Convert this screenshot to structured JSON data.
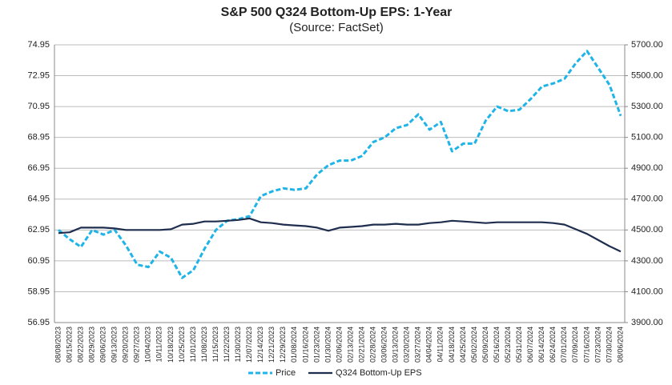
{
  "chart_data": {
    "type": "line",
    "title": "S&P 500 Q324 Bottom-Up EPS: 1-Year",
    "subtitle": "(Source: FactSet)",
    "categories": [
      "08/08/2023",
      "08/15/2023",
      "08/22/2023",
      "08/29/2023",
      "09/06/2023",
      "09/13/2023",
      "09/20/2023",
      "09/27/2023",
      "10/04/2023",
      "10/11/2023",
      "10/18/2023",
      "10/25/2023",
      "11/01/2023",
      "11/08/2023",
      "11/15/2023",
      "11/22/2023",
      "11/30/2023",
      "12/07/2023",
      "12/14/2023",
      "12/21/2023",
      "12/29/2023",
      "01/08/2024",
      "01/16/2024",
      "01/23/2024",
      "01/30/2024",
      "02/06/2024",
      "02/13/2024",
      "02/21/2024",
      "02/28/2024",
      "03/06/2024",
      "03/13/2024",
      "03/20/2024",
      "03/27/2024",
      "04/04/2024",
      "04/11/2024",
      "04/18/2024",
      "04/25/2024",
      "05/02/2024",
      "05/09/2024",
      "05/16/2024",
      "05/23/2024",
      "05/31/2024",
      "06/07/2024",
      "06/14/2024",
      "06/24/2024",
      "07/01/2024",
      "07/09/2024",
      "07/16/2024",
      "07/23/2024",
      "07/30/2024",
      "08/06/2024"
    ],
    "series": [
      {
        "name": "Price",
        "color": "#1fb4e8",
        "axis": "y2",
        "dashed": true,
        "values": [
          4500,
          4440,
          4390,
          4500,
          4470,
          4500,
          4400,
          4275,
          4260,
          4360,
          4320,
          4190,
          4240,
          4380,
          4500,
          4560,
          4570,
          4590,
          4720,
          4750,
          4770,
          4760,
          4770,
          4860,
          4920,
          4950,
          4950,
          4980,
          5070,
          5100,
          5160,
          5180,
          5250,
          5150,
          5200,
          5010,
          5060,
          5060,
          5210,
          5300,
          5270,
          5280,
          5350,
          5430,
          5450,
          5480,
          5580,
          5660,
          5550,
          5440,
          5240
        ]
      },
      {
        "name": "Q324 Bottom-Up EPS",
        "color": "#1f2d4e",
        "values": [
          62.75,
          62.8,
          63.1,
          63.1,
          63.1,
          63.05,
          62.95,
          62.95,
          62.95,
          62.95,
          63.0,
          63.3,
          63.35,
          63.5,
          63.5,
          63.55,
          63.6,
          63.7,
          63.45,
          63.4,
          63.3,
          63.25,
          63.2,
          63.1,
          62.9,
          63.1,
          63.15,
          63.2,
          63.3,
          63.3,
          63.35,
          63.3,
          63.3,
          63.4,
          63.45,
          63.55,
          63.5,
          63.45,
          63.4,
          63.45,
          63.45,
          63.45,
          63.45,
          63.45,
          63.4,
          63.3,
          63.0,
          62.7,
          62.3,
          61.9,
          61.55
        ]
      }
    ],
    "ylim": [
      56.95,
      74.95
    ],
    "yticks": [
      56.95,
      58.95,
      60.95,
      62.95,
      64.95,
      66.95,
      68.95,
      70.95,
      72.95,
      74.95
    ],
    "y2lim": [
      3900,
      5700
    ],
    "y2ticks": [
      {
        "value": 3900,
        "label": "3900.00"
      },
      {
        "value": 4100,
        "label": "4100.00"
      },
      {
        "value": 4300,
        "label": "4300.00"
      },
      {
        "value": 4500,
        "label": "4500.00"
      },
      {
        "value": 4700,
        "label": "4700.00"
      },
      {
        "value": 4900,
        "label": "4900.00"
      },
      {
        "value": 5100,
        "label": "5100.00"
      },
      {
        "value": 5300,
        "label": "5300.00"
      },
      {
        "value": 5500,
        "label": "5500.00"
      },
      {
        "value": 5700,
        "label": "5700.00"
      }
    ],
    "grid": true,
    "legend": "bottom"
  }
}
